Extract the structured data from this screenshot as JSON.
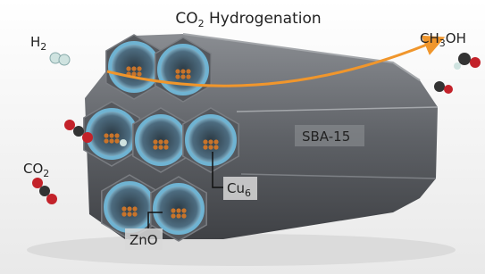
{
  "title": {
    "text": "CO",
    "subscript": "2",
    "rest": " Hydrogenation"
  },
  "labels": {
    "h2": {
      "text": "H",
      "subscript": "2"
    },
    "ch3oh": {
      "text": "CH",
      "subscript": "3",
      "rest": "OH"
    },
    "sba15": "SBA-15",
    "co2": {
      "text": "CO",
      "subscript": "2"
    },
    "cu6": {
      "text": "Cu",
      "subscript": "6"
    },
    "zno": "ZnO"
  }
}
